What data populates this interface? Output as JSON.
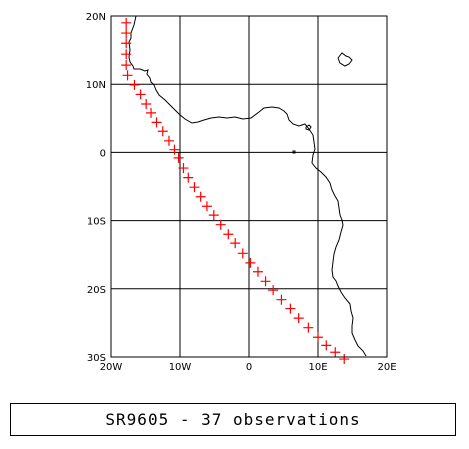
{
  "map": {
    "extent": {
      "lon": [
        -20,
        20
      ],
      "lat": [
        -30,
        20
      ]
    },
    "grid_step_degrees": 10,
    "grid": true,
    "x_ticks": [
      {
        "value": -20,
        "label": "20W"
      },
      {
        "value": -10,
        "label": "10W"
      },
      {
        "value": 0,
        "label": "0"
      },
      {
        "value": 10,
        "label": "10E"
      },
      {
        "value": 20,
        "label": "20E"
      }
    ],
    "y_ticks": [
      {
        "value": 20,
        "label": "20N"
      },
      {
        "value": 10,
        "label": "10N"
      },
      {
        "value": 0,
        "label": "0"
      },
      {
        "value": -10,
        "label": "10S"
      },
      {
        "value": -20,
        "label": "20S"
      },
      {
        "value": -30,
        "label": "30S"
      }
    ],
    "marker": {
      "symbol": "+",
      "color": "#ff0000"
    },
    "coastline_color": "#000000",
    "observations": [
      [
        -17.8,
        19.0
      ],
      [
        -17.8,
        17.5
      ],
      [
        -17.8,
        16.0
      ],
      [
        -17.8,
        14.4
      ],
      [
        -17.8,
        12.8
      ],
      [
        -17.6,
        11.3
      ],
      [
        -16.6,
        9.9
      ],
      [
        -15.7,
        8.5
      ],
      [
        -14.9,
        7.1
      ],
      [
        -14.2,
        5.8
      ],
      [
        -13.4,
        4.4
      ],
      [
        -12.5,
        3.1
      ],
      [
        -11.6,
        1.7
      ],
      [
        -10.8,
        0.4
      ],
      [
        -10.2,
        -0.8
      ],
      [
        -9.5,
        -2.3
      ],
      [
        -8.8,
        -3.7
      ],
      [
        -7.9,
        -5.1
      ],
      [
        -7.0,
        -6.5
      ],
      [
        -6.1,
        -7.9
      ],
      [
        -5.1,
        -9.2
      ],
      [
        -4.1,
        -10.6
      ],
      [
        -3.0,
        -12.0
      ],
      [
        -2.0,
        -13.3
      ],
      [
        -0.9,
        -14.8
      ],
      [
        0.2,
        -16.2
      ],
      [
        1.3,
        -17.5
      ],
      [
        2.4,
        -18.9
      ],
      [
        3.5,
        -20.2
      ],
      [
        4.7,
        -21.6
      ],
      [
        6.0,
        -22.9
      ],
      [
        7.2,
        -24.3
      ],
      [
        8.6,
        -25.7
      ],
      [
        10.0,
        -27.1
      ],
      [
        11.2,
        -28.3
      ],
      [
        12.5,
        -29.3
      ],
      [
        13.8,
        -30.3
      ]
    ]
  },
  "caption": {
    "text": "SR9605 - 37 observations"
  }
}
